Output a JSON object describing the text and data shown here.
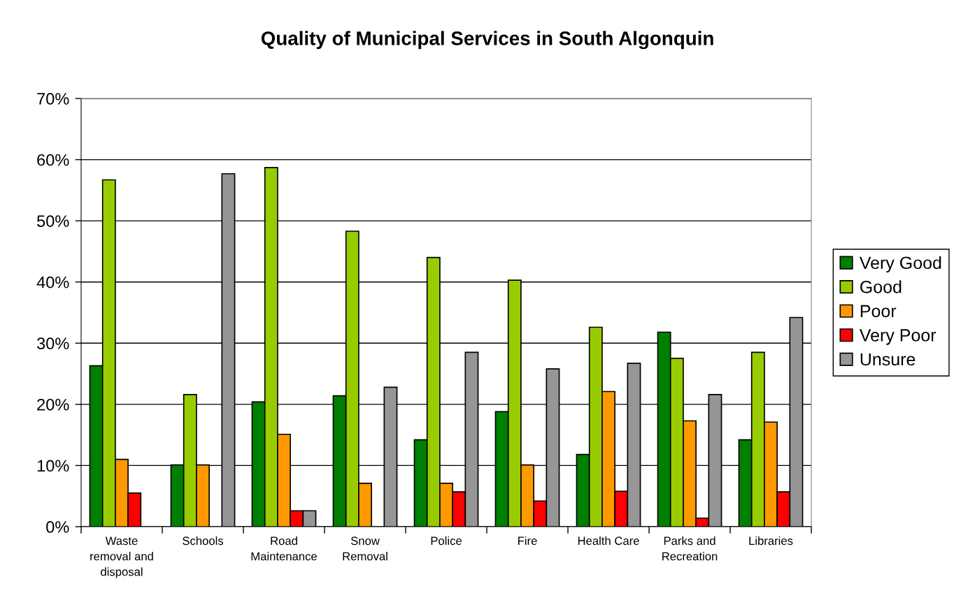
{
  "chart_data": {
    "type": "bar",
    "title": "Quality of Municipal Services in South Algonquin",
    "categories": [
      "Waste\nremoval and\ndisposal",
      "Schools",
      "Road\nMaintenance",
      "Snow\nRemoval",
      "Police",
      "Fire",
      "Health Care",
      "Parks and\nRecreation",
      "Libraries"
    ],
    "series": [
      {
        "name": "Very Good",
        "color": "#008000",
        "values": [
          26.3,
          10.1,
          20.4,
          21.4,
          14.2,
          18.8,
          11.8,
          31.8,
          14.2
        ]
      },
      {
        "name": "Good",
        "color": "#99cc00",
        "values": [
          56.7,
          21.6,
          58.7,
          48.3,
          44.0,
          40.3,
          32.6,
          27.5,
          28.5
        ]
      },
      {
        "name": "Poor",
        "color": "#ff9900",
        "values": [
          11.0,
          10.1,
          15.1,
          7.1,
          7.1,
          10.1,
          22.1,
          17.3,
          17.1
        ]
      },
      {
        "name": "Very Poor",
        "color": "#ff0000",
        "values": [
          5.5,
          null,
          2.6,
          null,
          5.7,
          4.2,
          5.8,
          1.4,
          5.7
        ]
      },
      {
        "name": "Unsure",
        "color": "#969696",
        "values": [
          null,
          57.7,
          2.6,
          22.8,
          28.5,
          25.8,
          26.7,
          21.6,
          34.2
        ]
      }
    ],
    "ylim": [
      0,
      70
    ],
    "yticks": [
      {
        "value": 0,
        "label": "0%"
      },
      {
        "value": 10,
        "label": "10%"
      },
      {
        "value": 20,
        "label": "20%"
      },
      {
        "value": 30,
        "label": "30%"
      },
      {
        "value": 40,
        "label": "40%"
      },
      {
        "value": 50,
        "label": "50%"
      },
      {
        "value": 60,
        "label": "60%"
      },
      {
        "value": 70,
        "label": "70%"
      }
    ],
    "grid": "y",
    "legend": "right"
  }
}
